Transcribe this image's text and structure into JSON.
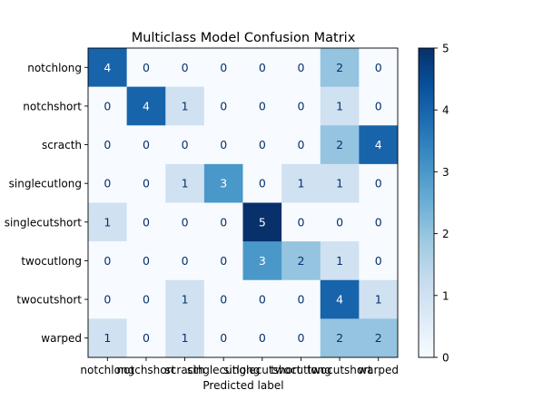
{
  "chart_data": {
    "type": "heatmap",
    "title": "Multiclass Model Confusion Matrix",
    "xlabel": "Predicted label",
    "ylabel": "",
    "row_labels": [
      "notchlong",
      "notchshort",
      "scracth",
      "singlecutlong",
      "singlecutshort",
      "twocutlong",
      "twocutshort",
      "warped"
    ],
    "col_labels": [
      "notchlong",
      "notchshort",
      "scracth",
      "singlecutlong",
      "singlecutshort",
      "twocutlong",
      "twocutshort",
      "warped"
    ],
    "matrix": [
      [
        4,
        0,
        0,
        0,
        0,
        0,
        2,
        0
      ],
      [
        0,
        4,
        1,
        0,
        0,
        0,
        1,
        0
      ],
      [
        0,
        0,
        0,
        0,
        0,
        0,
        2,
        4
      ],
      [
        0,
        0,
        1,
        3,
        0,
        1,
        1,
        0
      ],
      [
        1,
        0,
        0,
        0,
        5,
        0,
        0,
        0
      ],
      [
        0,
        0,
        0,
        0,
        3,
        2,
        1,
        0
      ],
      [
        0,
        0,
        1,
        0,
        0,
        0,
        4,
        1
      ],
      [
        1,
        0,
        1,
        0,
        0,
        0,
        2,
        2
      ]
    ],
    "colorbar": {
      "min": 0,
      "max": 5,
      "ticks": [
        "0",
        "1",
        "2",
        "3",
        "4",
        "5"
      ],
      "colormap": "Blues"
    },
    "grid": false
  }
}
